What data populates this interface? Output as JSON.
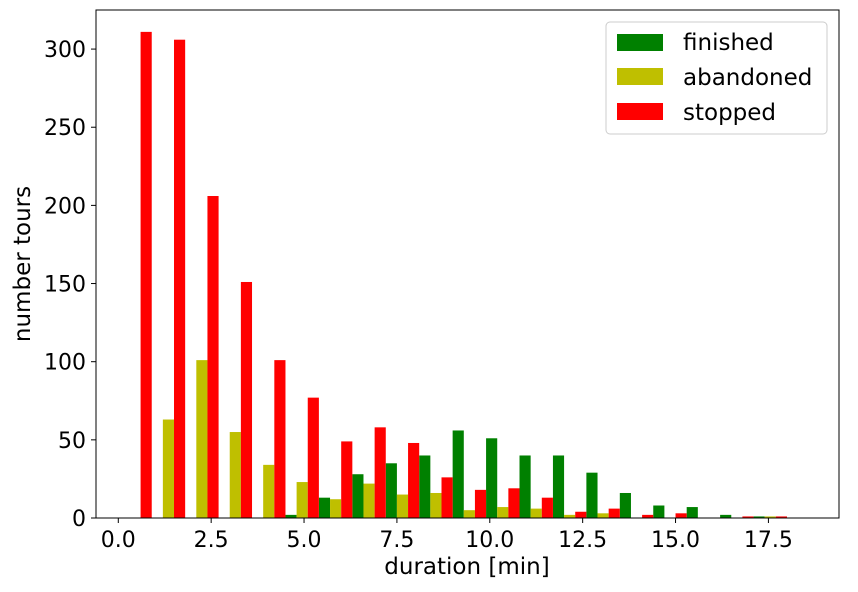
{
  "chart_data": {
    "type": "bar",
    "xlabel": "duration [min]",
    "ylabel": "number tours",
    "xlim": [
      -0.6,
      19.4
    ],
    "ylim": [
      0,
      325
    ],
    "xticks": [
      "0.0",
      "2.5",
      "5.0",
      "7.5",
      "10.0",
      "12.5",
      "15.0",
      "17.5"
    ],
    "xtick_values": [
      0,
      2.5,
      5,
      7.5,
      10,
      12.5,
      15,
      17.5
    ],
    "yticks": [
      "0",
      "50",
      "100",
      "150",
      "200",
      "250",
      "300"
    ],
    "ytick_values": [
      0,
      50,
      100,
      150,
      200,
      250,
      300
    ],
    "bin_edges": [
      0,
      0.9,
      1.8,
      2.7,
      3.6,
      4.5,
      5.4,
      6.3,
      7.2,
      8.1,
      9.0,
      9.9,
      10.8,
      11.7,
      12.6,
      13.5,
      14.4,
      15.3,
      16.2,
      17.1,
      18.0
    ],
    "series": [
      {
        "name": "finished",
        "color": "#008000",
        "values": [
          0,
          0,
          0,
          0,
          0,
          2,
          13,
          28,
          35,
          40,
          56,
          51,
          40,
          40,
          29,
          16,
          8,
          7,
          2,
          1
        ]
      },
      {
        "name": "abandoned",
        "color": "#bfbf00",
        "values": [
          0,
          63,
          101,
          55,
          34,
          23,
          12,
          22,
          15,
          16,
          5,
          7,
          6,
          2,
          3,
          0,
          0,
          0,
          0,
          1
        ]
      },
      {
        "name": "stopped",
        "color": "#ff0000",
        "values": [
          311,
          306,
          206,
          151,
          101,
          77,
          49,
          58,
          48,
          26,
          18,
          19,
          13,
          4,
          6,
          2,
          3,
          0,
          1,
          1
        ]
      }
    ],
    "legend_position": "top-right",
    "grid": false
  }
}
